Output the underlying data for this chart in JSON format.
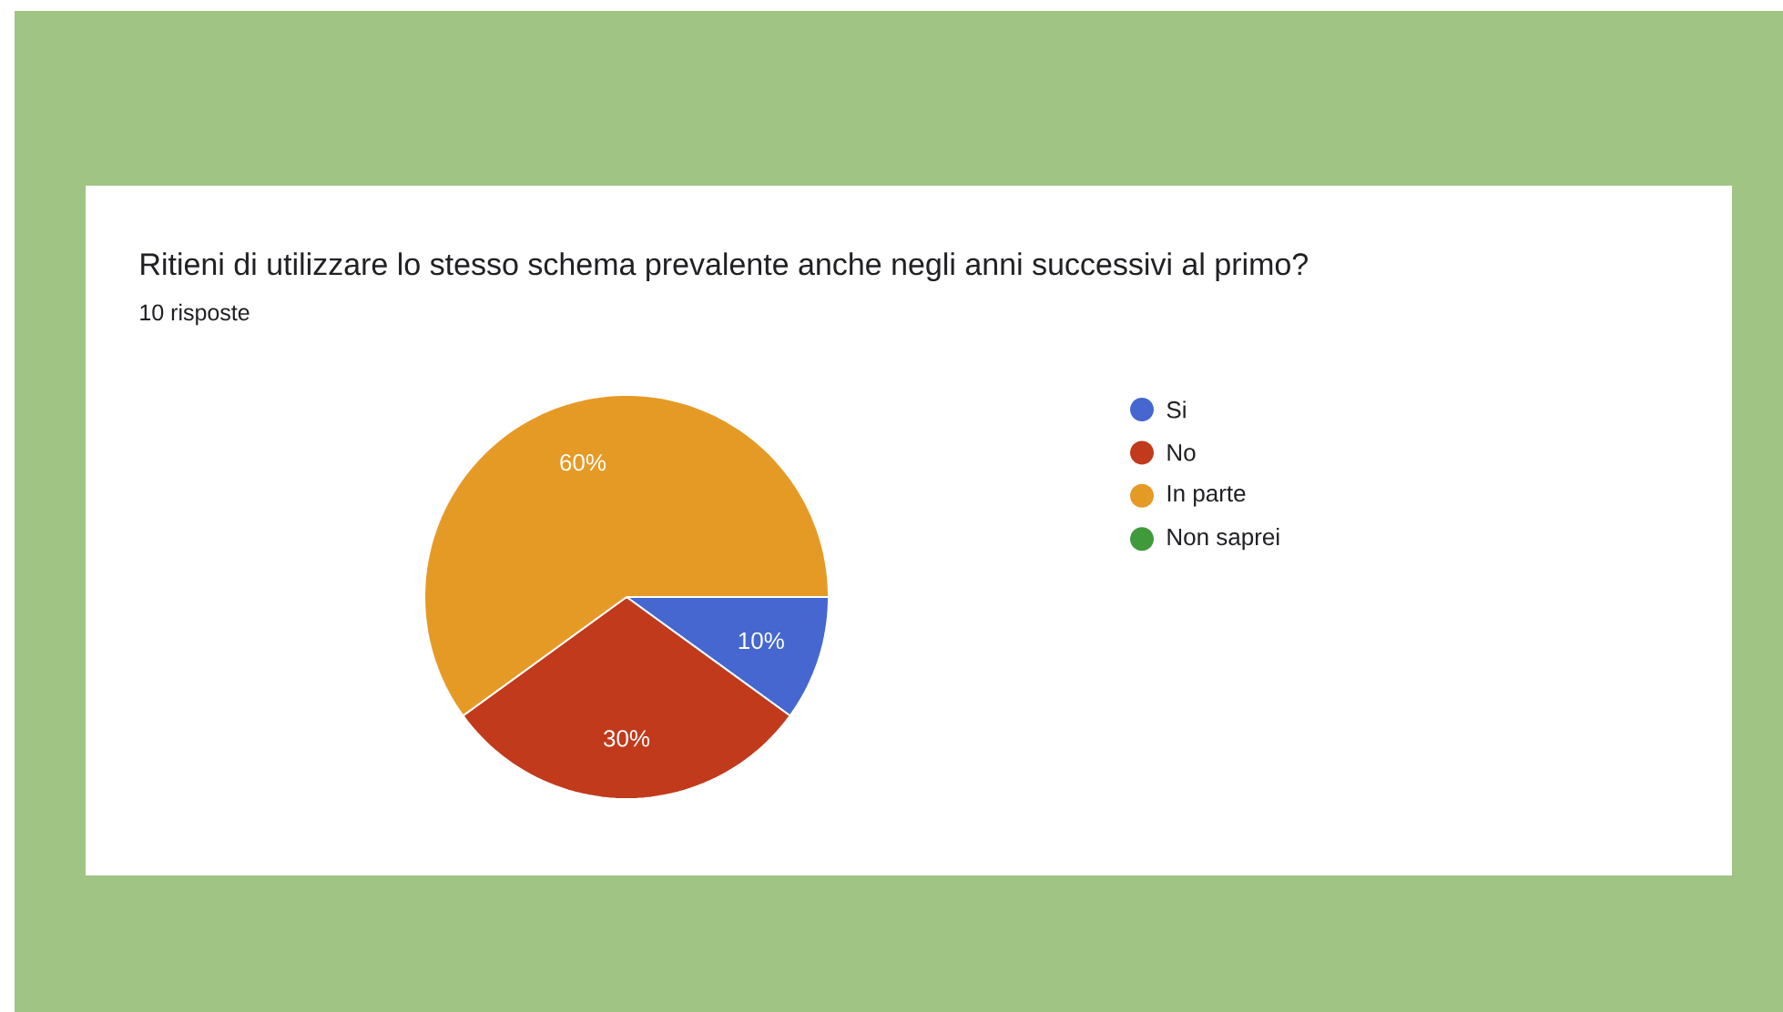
{
  "chart_data": {
    "type": "pie",
    "title": "Ritieni di utilizzare lo stesso schema prevalente anche negli anni successivi al primo?",
    "subtitle": "10 risposte",
    "categories": [
      "Si",
      "No",
      "In parte",
      "Non saprei"
    ],
    "values": [
      10,
      30,
      60,
      0
    ],
    "colors": [
      "#4567cf",
      "#c13a1c",
      "#e69a26",
      "#3f9a3c"
    ],
    "value_labels": [
      "10%",
      "30%",
      "60%",
      null
    ],
    "legend": "right"
  }
}
